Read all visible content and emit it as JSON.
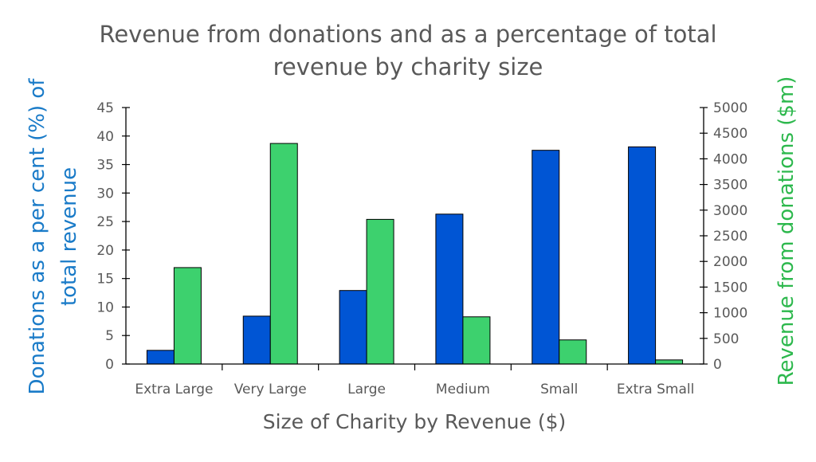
{
  "chart_data": {
    "type": "bar",
    "title": "Revenue from donations and as a percentage of total revenue by charity size",
    "title_lines": [
      "Revenue from donations and as a percentage of total",
      "revenue by charity size"
    ],
    "xlabel": "Size of Charity by Revenue ($)",
    "ylabel_left_lines": [
      "Donations as a per cent (%) of",
      "total revenue"
    ],
    "ylabel_right": "Revenue from donations ($m)",
    "categories": [
      "Extra Large",
      "Very Large",
      "Large",
      "Medium",
      "Small",
      "Extra Small"
    ],
    "ylim_left": [
      0,
      45
    ],
    "ylim_right": [
      0,
      5000
    ],
    "yticks_left": [
      0,
      5,
      10,
      15,
      20,
      25,
      30,
      35,
      40,
      45
    ],
    "yticks_right": [
      0,
      500,
      1000,
      1500,
      2000,
      2500,
      3000,
      3500,
      4000,
      4500,
      5000
    ],
    "grid": false,
    "series": [
      {
        "axis": "left",
        "color": "#0055D4",
        "values": [
          2.4,
          8.4,
          12.9,
          26.3,
          37.5,
          38.1
        ]
      },
      {
        "axis": "right",
        "color": "#3DD16E",
        "values": [
          1880,
          4300,
          2820,
          920,
          470,
          80
        ]
      }
    ],
    "colors": {
      "left_axis_label": "#1A7BC8",
      "right_axis_label": "#2DB84D",
      "text": "#595959",
      "axis": "#000000"
    }
  }
}
